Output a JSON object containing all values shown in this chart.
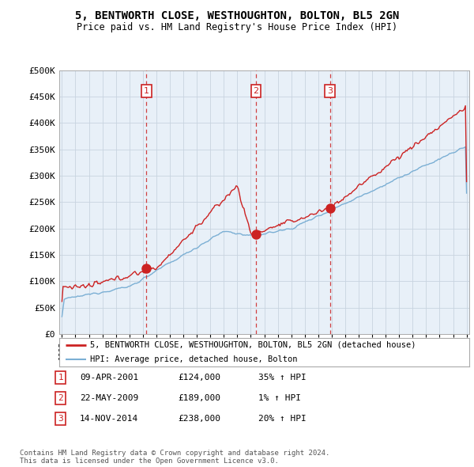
{
  "title": "5, BENTWORTH CLOSE, WESTHOUGHTON, BOLTON, BL5 2GN",
  "subtitle": "Price paid vs. HM Land Registry's House Price Index (HPI)",
  "ylim": [
    0,
    500000
  ],
  "yticks": [
    0,
    50000,
    100000,
    150000,
    200000,
    250000,
    300000,
    350000,
    400000,
    450000,
    500000
  ],
  "ytick_labels": [
    "£0",
    "£50K",
    "£100K",
    "£150K",
    "£200K",
    "£250K",
    "£300K",
    "£350K",
    "£400K",
    "£450K",
    "£500K"
  ],
  "hpi_color": "#7bafd4",
  "price_color": "#cc2222",
  "dashed_color": "#cc2222",
  "chart_bg": "#e8f0f8",
  "sale_dates": [
    2001.27,
    2009.39,
    2014.87
  ],
  "sale_prices": [
    124000,
    189000,
    238000
  ],
  "sale_labels": [
    "1",
    "2",
    "3"
  ],
  "legend_label_price": "5, BENTWORTH CLOSE, WESTHOUGHTON, BOLTON, BL5 2GN (detached house)",
  "legend_label_hpi": "HPI: Average price, detached house, Bolton",
  "table_entries": [
    [
      "1",
      "09-APR-2001",
      "£124,000",
      "35% ↑ HPI"
    ],
    [
      "2",
      "22-MAY-2009",
      "£189,000",
      "1% ↑ HPI"
    ],
    [
      "3",
      "14-NOV-2014",
      "£238,000",
      "20% ↑ HPI"
    ]
  ],
  "footer": "Contains HM Land Registry data © Crown copyright and database right 2024.\nThis data is licensed under the Open Government Licence v3.0.",
  "background_color": "#ffffff",
  "grid_color": "#c8d4e0"
}
